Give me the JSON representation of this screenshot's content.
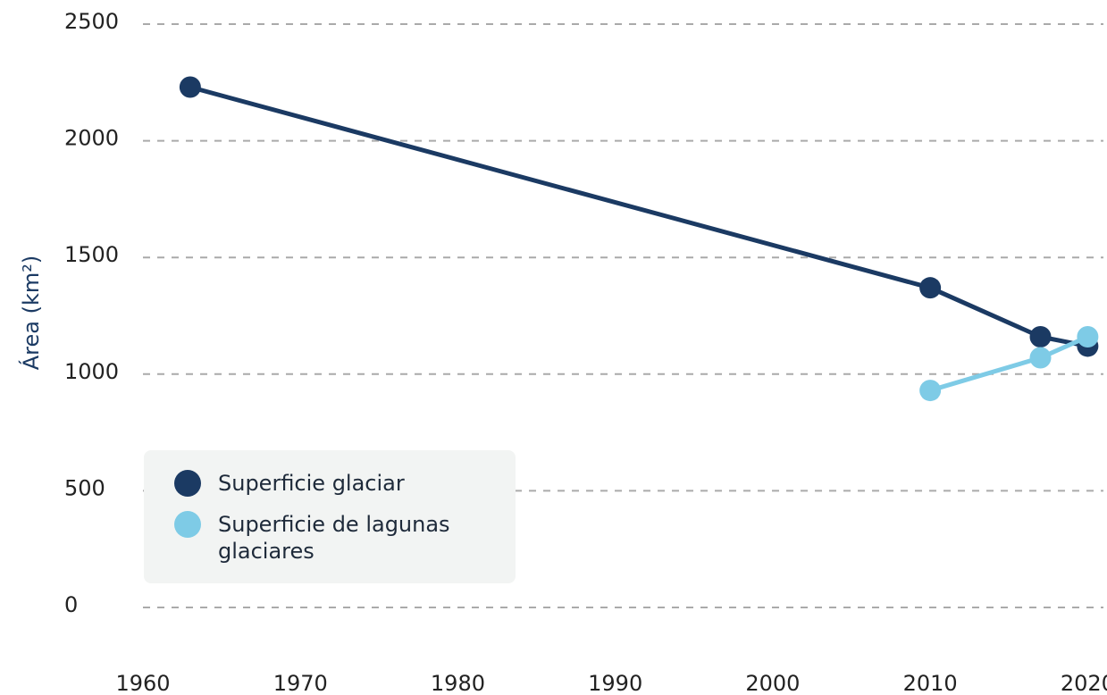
{
  "chart_data": {
    "type": "line",
    "y_label": "Área (km²)",
    "x": [
      1963,
      2010,
      2017,
      2020
    ],
    "series": [
      {
        "name": "Superficie glaciar",
        "color": "#1b3a63",
        "values": [
          2230,
          1370,
          1160,
          1120
        ]
      },
      {
        "name": "Superficie de lagunas glaciares",
        "color": "#7ecbe6",
        "values": [
          null,
          930,
          1070,
          1160
        ]
      }
    ],
    "xlim": [
      1960,
      2021
    ],
    "xticks": [
      1960,
      1970,
      1980,
      1990,
      2000,
      2010,
      2020
    ],
    "ylim": [
      0,
      2500
    ],
    "yticks": [
      0,
      500,
      1000,
      1500,
      2000,
      2500
    ],
    "grid": true,
    "legend": "lower left"
  }
}
